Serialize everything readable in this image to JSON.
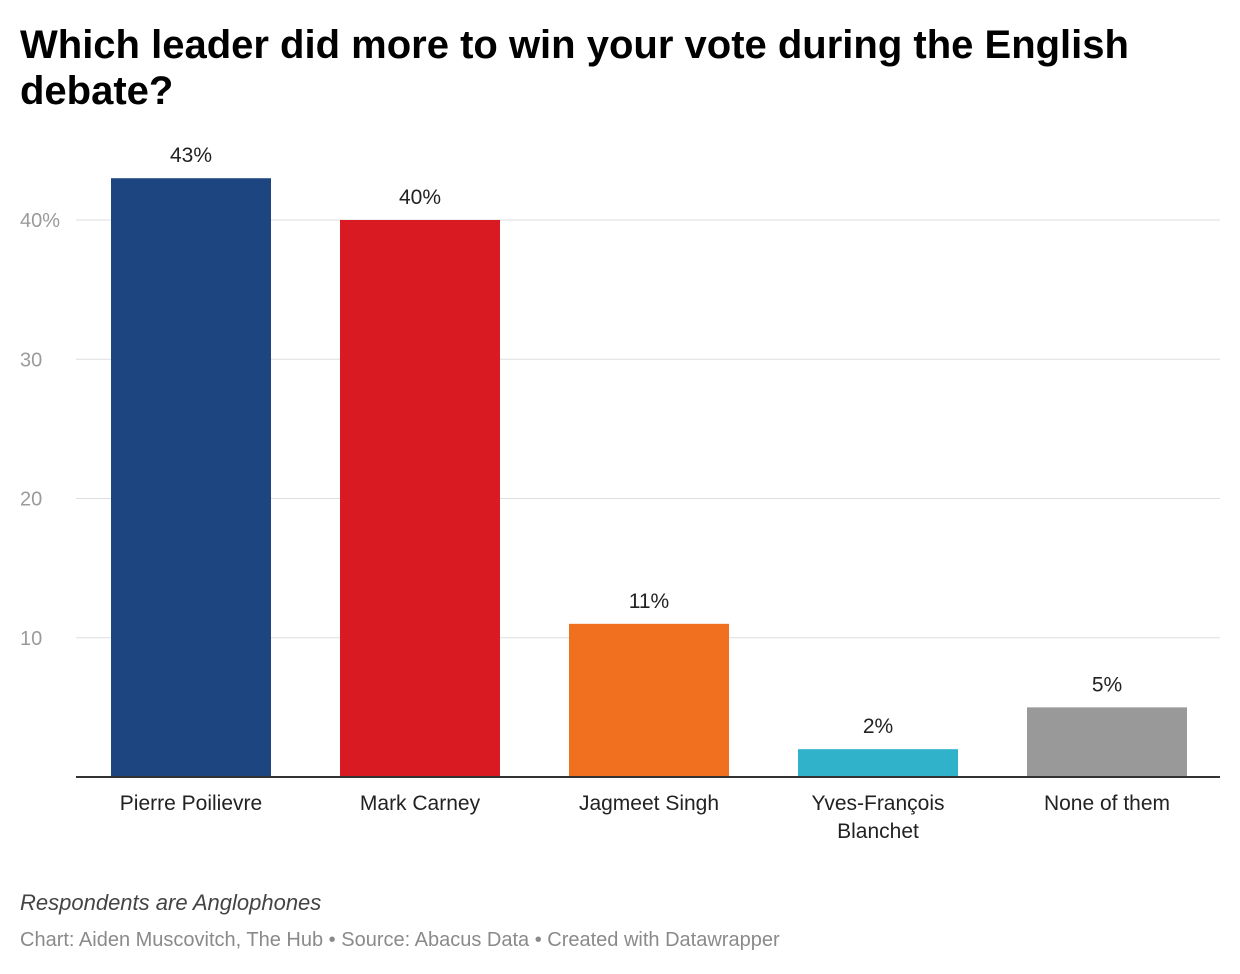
{
  "chart_data": {
    "type": "bar",
    "title": "Which leader did more to win your vote during the English debate?",
    "categories": [
      [
        "Pierre Poilievre"
      ],
      [
        "Mark Carney"
      ],
      [
        "Jagmeet Singh"
      ],
      [
        "Yves-François",
        "Blanchet"
      ],
      [
        "None of them"
      ]
    ],
    "values": [
      43,
      40,
      11,
      2,
      5
    ],
    "value_labels": [
      "43%",
      "40%",
      "11%",
      "2%",
      "5%"
    ],
    "colors": [
      "#1d4680",
      "#d91a22",
      "#f07020",
      "#30b2cb",
      "#999999"
    ],
    "ylim": [
      0,
      43
    ],
    "yticks": [
      10,
      20,
      30,
      40
    ],
    "ytick_labels": [
      "10",
      "20",
      "30",
      "40%"
    ],
    "xlabel": "",
    "ylabel": "",
    "grid": true,
    "notes": "Respondents are Anglophones"
  },
  "footer": {
    "chart_credit": "Chart: Aiden Muscovitch, The Hub",
    "separator": " • ",
    "source": "Source: Abacus Data",
    "created_with": "Created with Datawrapper"
  }
}
